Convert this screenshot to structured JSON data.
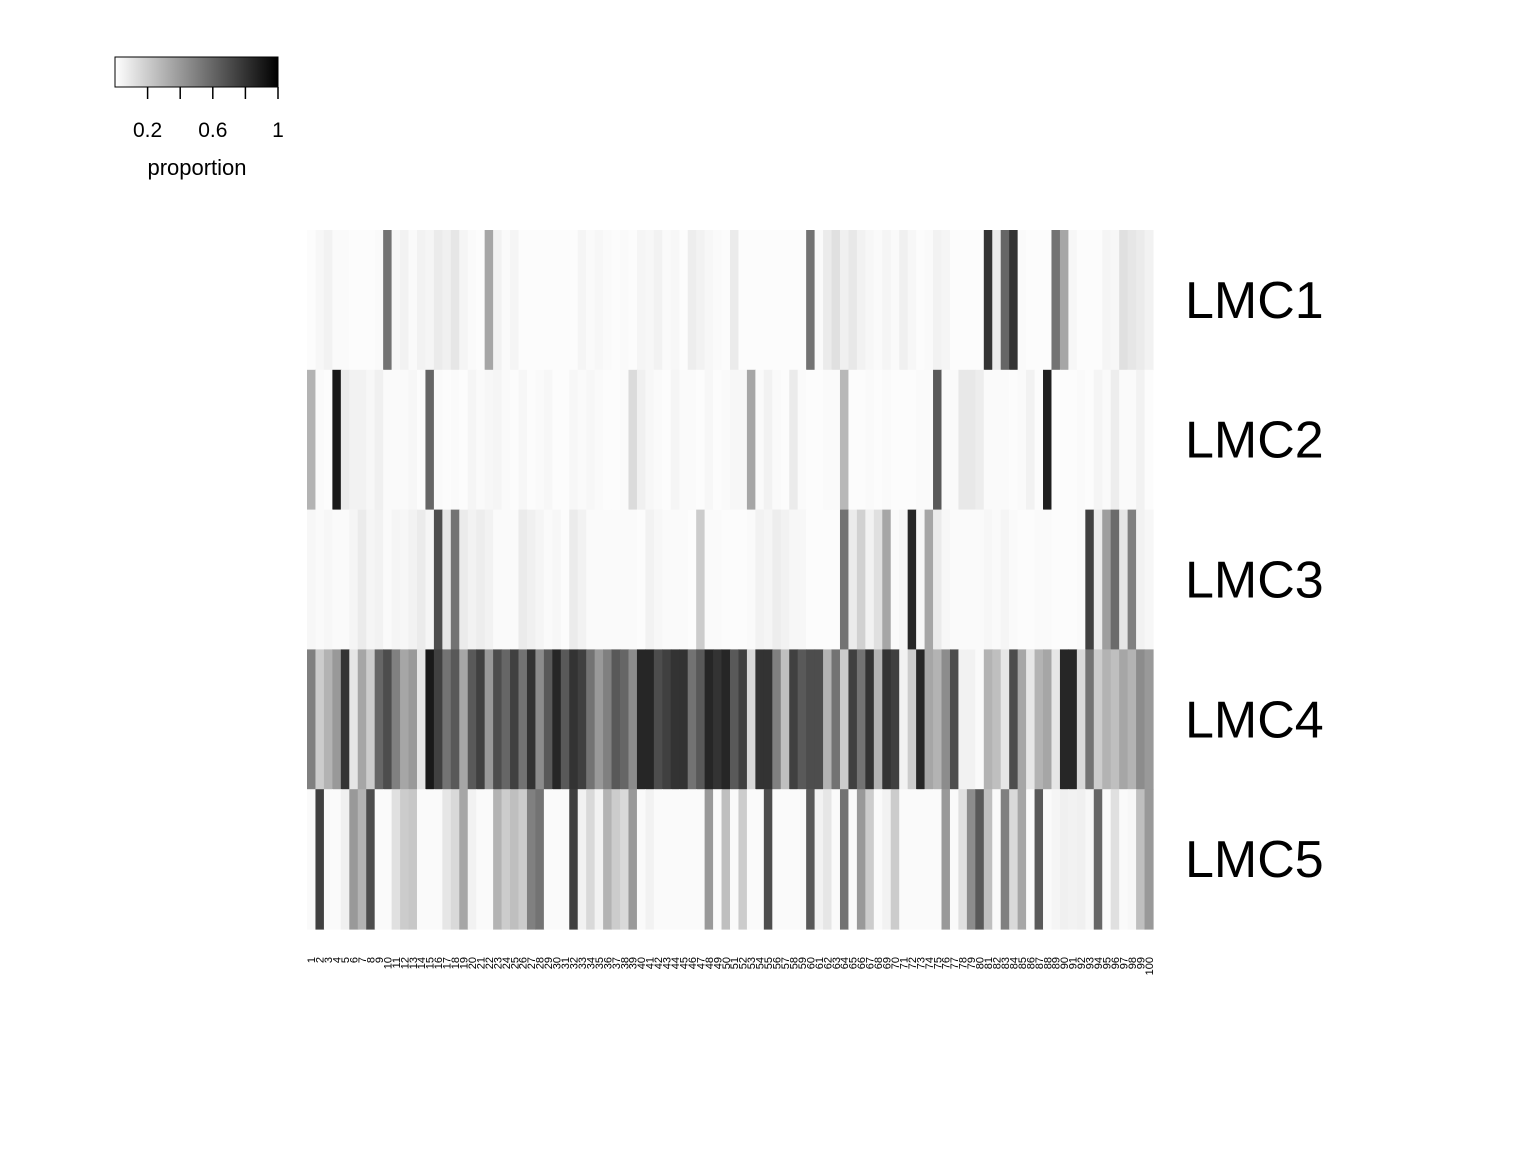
{
  "chart_data": {
    "type": "heatmap",
    "title": "",
    "xlabel": "",
    "ylabel": "",
    "rows": [
      "LMC1",
      "LMC2",
      "LMC3",
      "LMC4",
      "LMC5"
    ],
    "columns": [
      1,
      2,
      3,
      4,
      5,
      6,
      7,
      8,
      9,
      10,
      11,
      12,
      13,
      14,
      15,
      16,
      17,
      18,
      19,
      20,
      21,
      22,
      23,
      24,
      25,
      26,
      27,
      28,
      29,
      30,
      31,
      32,
      33,
      34,
      35,
      36,
      37,
      38,
      39,
      40,
      41,
      42,
      43,
      44,
      45,
      46,
      47,
      48,
      49,
      50,
      51,
      52,
      53,
      54,
      55,
      56,
      57,
      58,
      59,
      60,
      61,
      62,
      63,
      64,
      65,
      66,
      67,
      68,
      69,
      70,
      71,
      72,
      73,
      74,
      75,
      76,
      77,
      78,
      79,
      80,
      81,
      82,
      83,
      84,
      85,
      86,
      87,
      88,
      89,
      90,
      91,
      92,
      93,
      94,
      95,
      96,
      97,
      98,
      99,
      100
    ],
    "values": [
      [
        0.01,
        0.03,
        0.05,
        0.02,
        0.02,
        0.01,
        0.01,
        0.01,
        0.02,
        0.55,
        0.03,
        0.05,
        0.02,
        0.05,
        0.04,
        0.08,
        0.06,
        0.1,
        0.04,
        0.02,
        0.01,
        0.35,
        0.05,
        0.02,
        0.04,
        0.01,
        0.01,
        0.01,
        0.01,
        0.01,
        0.01,
        0.01,
        0.04,
        0.02,
        0.03,
        0.02,
        0.01,
        0.02,
        0.01,
        0.04,
        0.03,
        0.05,
        0.02,
        0.03,
        0.01,
        0.07,
        0.05,
        0.03,
        0.02,
        0.01,
        0.08,
        0.01,
        0.01,
        0.01,
        0.01,
        0.01,
        0.01,
        0.01,
        0.01,
        0.55,
        0.02,
        0.08,
        0.12,
        0.06,
        0.09,
        0.05,
        0.03,
        0.02,
        0.04,
        0.02,
        0.06,
        0.03,
        0.01,
        0.02,
        0.05,
        0.04,
        0.01,
        0.01,
        0.01,
        0.01,
        0.8,
        0.08,
        0.6,
        0.8,
        0.02,
        0.01,
        0.01,
        0.01,
        0.55,
        0.35,
        0.03,
        0.01,
        0.01,
        0.01,
        0.04,
        0.03,
        0.12,
        0.1,
        0.08,
        0.05
      ],
      [
        0.3,
        0.02,
        0.01,
        0.9,
        0.08,
        0.05,
        0.05,
        0.03,
        0.06,
        0.02,
        0.02,
        0.02,
        0.03,
        0.01,
        0.6,
        0.02,
        0.01,
        0.02,
        0.01,
        0.04,
        0.02,
        0.03,
        0.04,
        0.02,
        0.01,
        0.03,
        0.01,
        0.02,
        0.03,
        0.01,
        0.01,
        0.03,
        0.02,
        0.03,
        0.02,
        0.01,
        0.01,
        0.02,
        0.14,
        0.06,
        0.03,
        0.02,
        0.01,
        0.04,
        0.02,
        0.02,
        0.01,
        0.03,
        0.01,
        0.02,
        0.03,
        0.03,
        0.35,
        0.02,
        0.05,
        0.02,
        0.01,
        0.08,
        0.02,
        0.01,
        0.01,
        0.02,
        0.02,
        0.28,
        0.01,
        0.01,
        0.02,
        0.01,
        0.02,
        0.01,
        0.01,
        0.01,
        0.02,
        0.02,
        0.65,
        0.02,
        0.02,
        0.09,
        0.09,
        0.07,
        0.02,
        0.02,
        0.02,
        0.01,
        0.02,
        0.05,
        0.01,
        0.88,
        0.01,
        0.01,
        0.01,
        0.02,
        0.01,
        0.04,
        0.02,
        0.07,
        0.02,
        0.02,
        0.05,
        0.01
      ],
      [
        0.03,
        0.02,
        0.03,
        0.02,
        0.02,
        0.04,
        0.08,
        0.04,
        0.05,
        0.02,
        0.04,
        0.03,
        0.05,
        0.08,
        0.04,
        0.7,
        0.1,
        0.55,
        0.08,
        0.05,
        0.07,
        0.05,
        0.02,
        0.02,
        0.02,
        0.08,
        0.06,
        0.04,
        0.02,
        0.03,
        0.01,
        0.08,
        0.05,
        0.02,
        0.02,
        0.02,
        0.02,
        0.02,
        0.02,
        0.01,
        0.05,
        0.03,
        0.02,
        0.02,
        0.02,
        0.01,
        0.2,
        0.02,
        0.02,
        0.01,
        0.01,
        0.01,
        0.02,
        0.05,
        0.04,
        0.07,
        0.05,
        0.03,
        0.03,
        0.01,
        0.01,
        0.01,
        0.01,
        0.55,
        0.08,
        0.18,
        0.05,
        0.12,
        0.35,
        0.02,
        0.04,
        0.85,
        0.03,
        0.35,
        0.08,
        0.03,
        0.02,
        0.02,
        0.02,
        0.02,
        0.03,
        0.02,
        0.04,
        0.02,
        0.01,
        0.01,
        0.02,
        0.02,
        0.01,
        0.01,
        0.01,
        0.02,
        0.75,
        0.08,
        0.38,
        0.58,
        0.1,
        0.5,
        0.05,
        0.03
      ],
      [
        0.5,
        0.2,
        0.3,
        0.4,
        0.8,
        0.1,
        0.35,
        0.2,
        0.6,
        0.7,
        0.5,
        0.35,
        0.4,
        0.1,
        0.9,
        0.75,
        0.55,
        0.65,
        0.35,
        0.65,
        0.75,
        0.4,
        0.7,
        0.6,
        0.75,
        0.55,
        0.8,
        0.45,
        0.65,
        0.85,
        0.65,
        0.8,
        0.75,
        0.55,
        0.4,
        0.5,
        0.65,
        0.6,
        0.45,
        0.85,
        0.85,
        0.7,
        0.75,
        0.8,
        0.8,
        0.55,
        0.65,
        0.85,
        0.8,
        0.85,
        0.65,
        0.75,
        0.15,
        0.8,
        0.8,
        0.5,
        0.25,
        0.75,
        0.65,
        0.7,
        0.7,
        0.3,
        0.55,
        0.2,
        0.75,
        0.55,
        0.8,
        0.3,
        0.8,
        0.75,
        0.05,
        0.2,
        0.85,
        0.35,
        0.3,
        0.45,
        0.7,
        0.05,
        0.05,
        0.02,
        0.3,
        0.25,
        0.1,
        0.7,
        0.35,
        0.1,
        0.3,
        0.35,
        0.1,
        0.85,
        0.85,
        0.15,
        0.55,
        0.2,
        0.3,
        0.25,
        0.35,
        0.3,
        0.45,
        0.4
      ],
      [
        0.02,
        0.75,
        0.02,
        0.02,
        0.06,
        0.4,
        0.3,
        0.7,
        0.02,
        0.02,
        0.12,
        0.2,
        0.22,
        0.02,
        0.02,
        0.02,
        0.1,
        0.15,
        0.35,
        0.05,
        0.02,
        0.02,
        0.3,
        0.2,
        0.25,
        0.2,
        0.5,
        0.55,
        0.02,
        0.02,
        0.02,
        0.75,
        0.05,
        0.15,
        0.05,
        0.3,
        0.2,
        0.15,
        0.4,
        0.02,
        0.05,
        0.02,
        0.02,
        0.02,
        0.02,
        0.02,
        0.02,
        0.4,
        0.02,
        0.25,
        0.02,
        0.2,
        0.02,
        0.02,
        0.7,
        0.02,
        0.02,
        0.02,
        0.02,
        0.65,
        0.05,
        0.1,
        0.02,
        0.55,
        0.02,
        0.4,
        0.2,
        0.02,
        0.05,
        0.2,
        0.02,
        0.02,
        0.02,
        0.02,
        0.02,
        0.4,
        0.02,
        0.12,
        0.45,
        0.65,
        0.25,
        0.02,
        0.5,
        0.15,
        0.35,
        0.02,
        0.65,
        0.02,
        0.04,
        0.06,
        0.05,
        0.06,
        0.03,
        0.6,
        0.02,
        0.12,
        0.02,
        0.03,
        0.25,
        0.4
      ]
    ],
    "color_scale": {
      "label": "proportion",
      "ticks": [
        "0.2",
        "0.6",
        "1"
      ],
      "tick_values": [
        0.2,
        0.6,
        1
      ],
      "range": [
        0,
        1
      ],
      "low_color": "#ffffff",
      "high_color": "#000000"
    },
    "grid": false,
    "legend_placement": "top-left"
  }
}
